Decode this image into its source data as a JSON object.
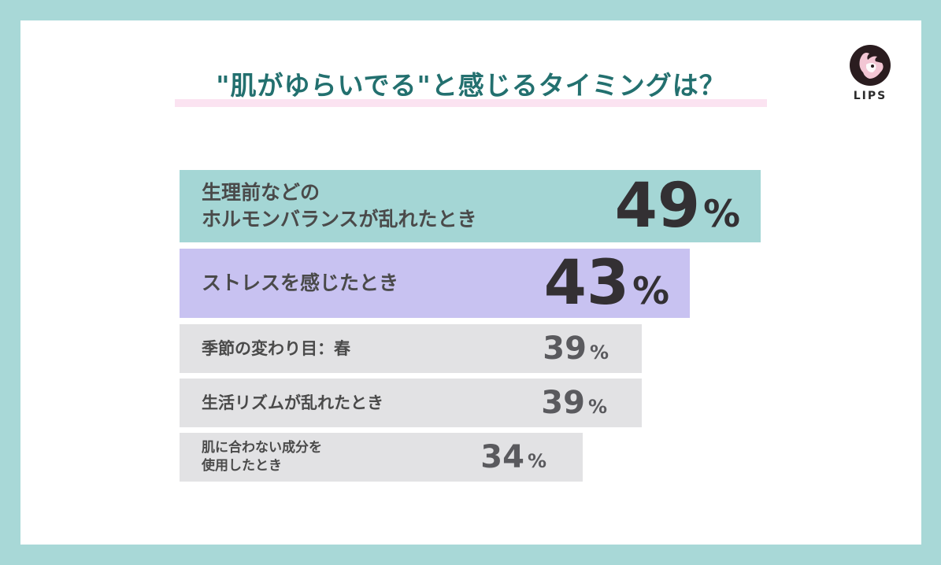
{
  "title": "\"肌がゆらいでる\"と感じるタイミングは？",
  "logo": {
    "text": "LIPS",
    "icon": "deer-head-icon"
  },
  "colors": {
    "frame": "#a8d8d7",
    "title": "#23706f",
    "underline": "#fbe3f1",
    "bar_top1": "#a4d6d5",
    "bar_top2": "#c8c2f1",
    "bar_other": "#e2e2e4",
    "text_dark": "#333033",
    "text_gray": "#4a4a4a"
  },
  "chart_data": {
    "type": "bar",
    "orientation": "horizontal",
    "unit": "%",
    "categories": [
      "生理前などの\nホルモンバランスが乱れたとき",
      "ストレスを感じたとき",
      "季節の変わり目：春",
      "生活リズムが乱れたとき",
      "肌に合わない成分を\n使用したとき"
    ],
    "values": [
      49,
      43,
      39,
      39,
      34
    ],
    "xlim": [
      0,
      49
    ],
    "grid": false,
    "legend": "none"
  }
}
